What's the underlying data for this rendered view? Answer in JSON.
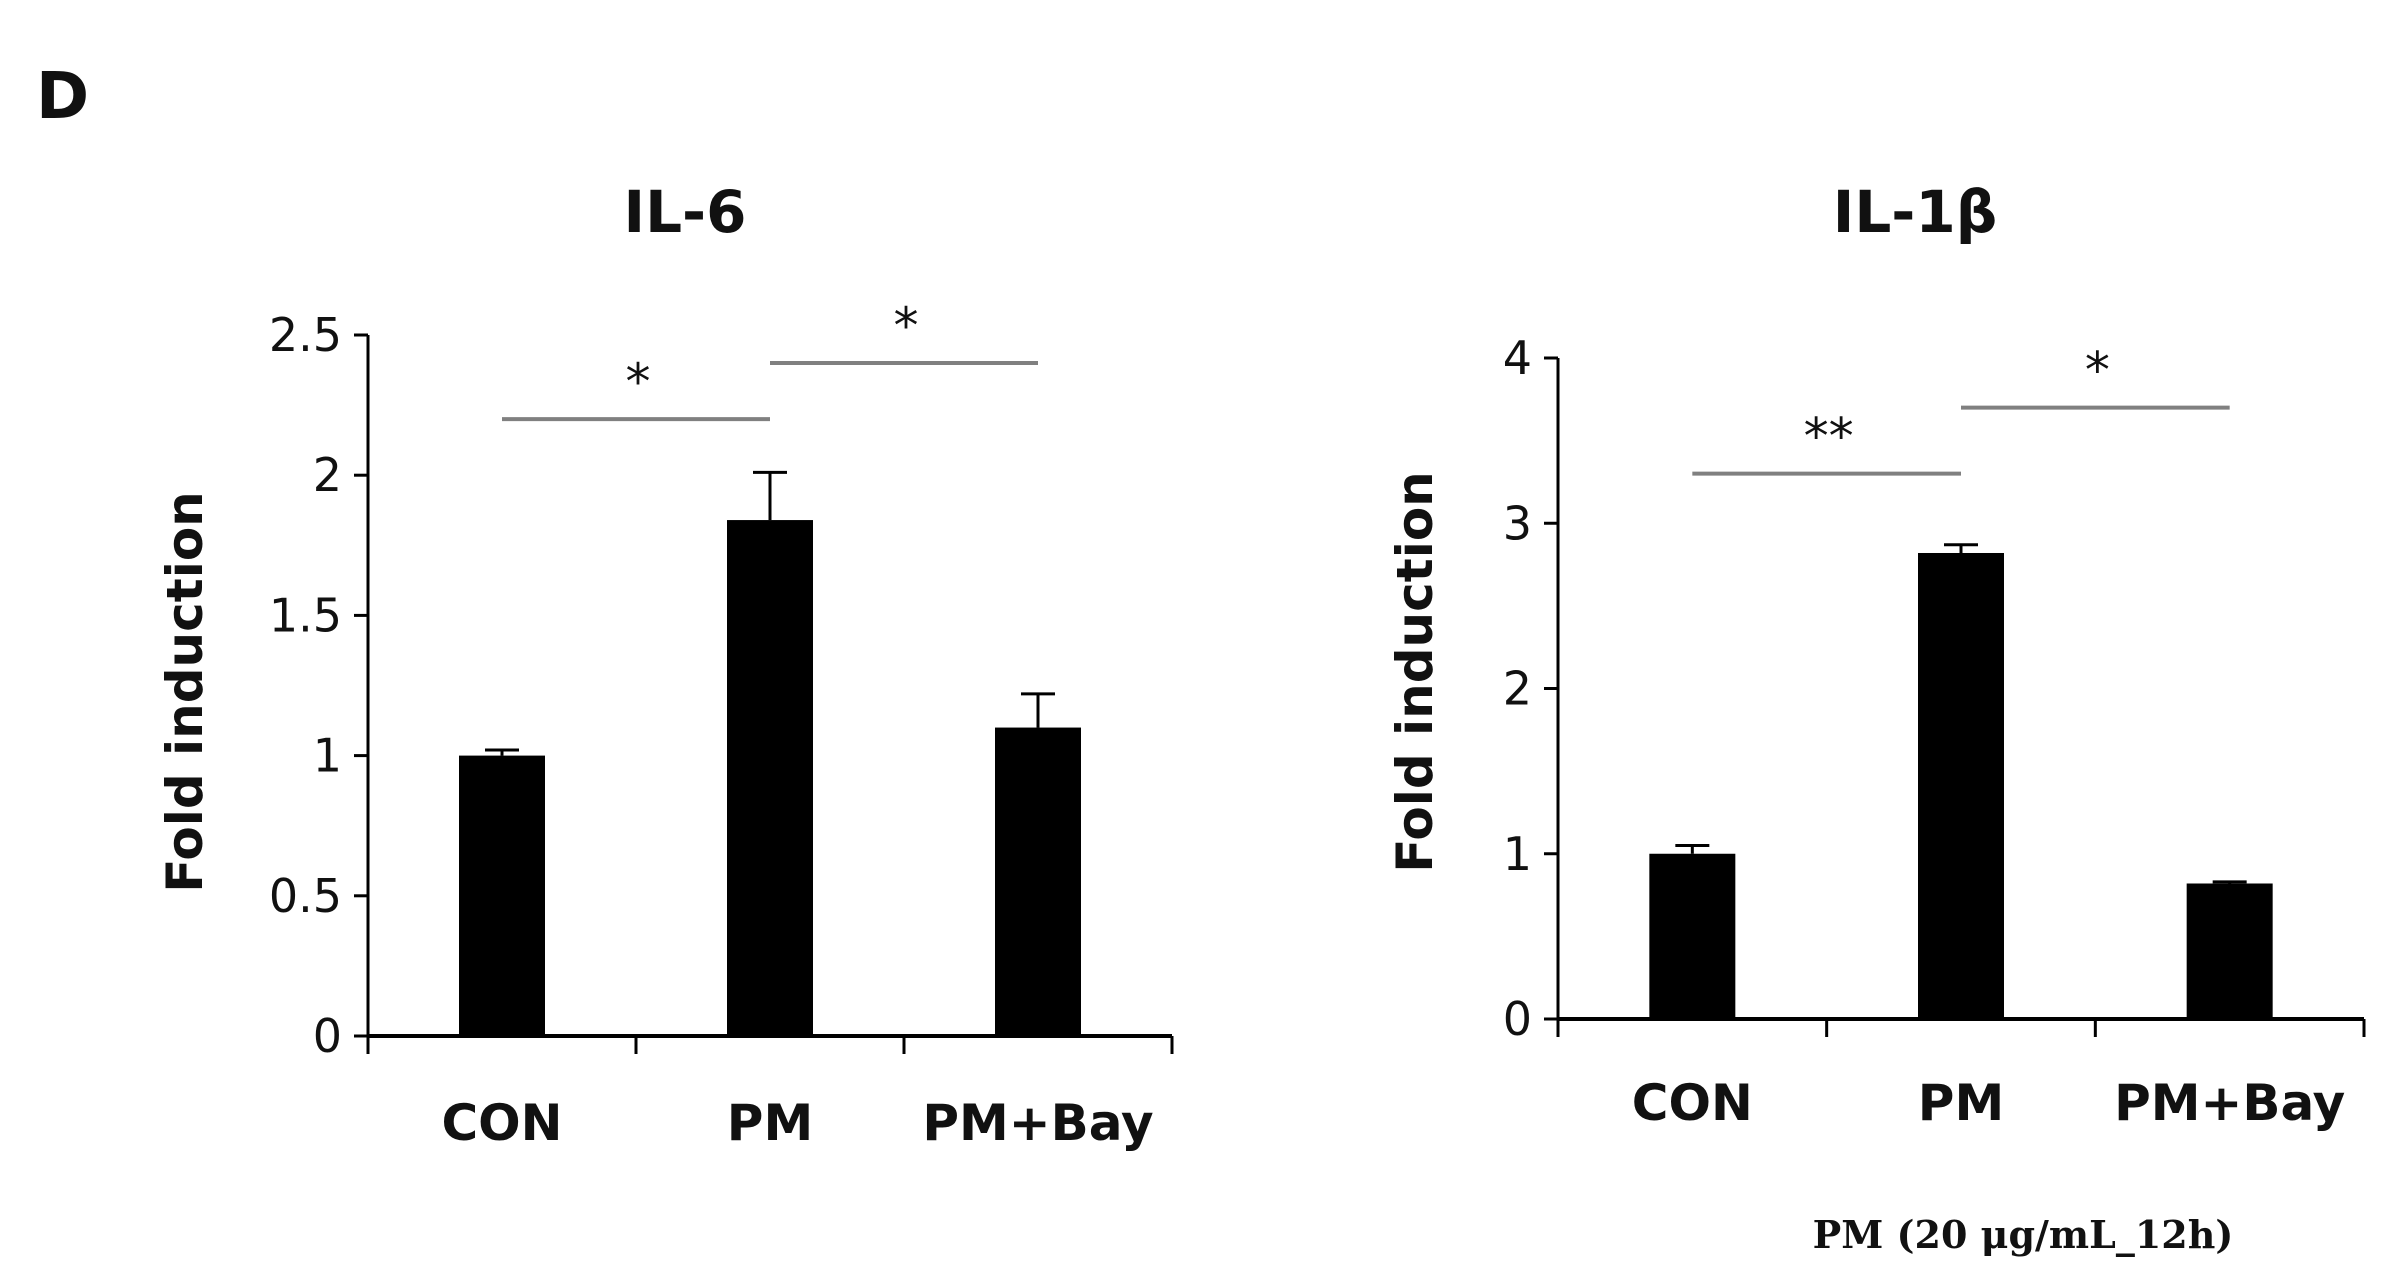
{
  "panel_label": "D",
  "footnote": "PM (20 μg/mL_12h)",
  "chart_data": [
    {
      "type": "bar",
      "title": "IL-6",
      "xlabel": "",
      "ylabel": "Fold induction",
      "categories": [
        "CON",
        "PM",
        "PM+Bay"
      ],
      "values": [
        1.0,
        1.84,
        1.1
      ],
      "errors": [
        0.02,
        0.17,
        0.12
      ],
      "ylim": [
        0,
        2.5
      ],
      "yticks": [
        "0",
        "0.5",
        "1",
        "1.5",
        "2",
        "2.5"
      ],
      "ytick_values": [
        0,
        0.5,
        1,
        1.5,
        2,
        2.5
      ],
      "bar_color": "#000000",
      "significance": [
        {
          "from": 0,
          "to": 1,
          "y": 2.2,
          "label": "*"
        },
        {
          "from": 1,
          "to": 2,
          "y": 2.4,
          "label": "*"
        }
      ]
    },
    {
      "type": "bar",
      "title": "IL-1β",
      "xlabel": "",
      "ylabel": "Fold induction",
      "categories": [
        "CON",
        "PM",
        "PM+Bay"
      ],
      "values": [
        1.0,
        2.82,
        0.82
      ],
      "errors": [
        0.05,
        0.05,
        0.01
      ],
      "ylim": [
        0,
        4
      ],
      "yticks": [
        "0",
        "1",
        "2",
        "3",
        "4"
      ],
      "ytick_values": [
        0,
        1,
        2,
        3,
        4
      ],
      "bar_color": "#000000",
      "significance": [
        {
          "from": 0,
          "to": 1,
          "y": 3.3,
          "label": "**"
        },
        {
          "from": 1,
          "to": 2,
          "y": 3.7,
          "label": "*"
        }
      ]
    }
  ]
}
